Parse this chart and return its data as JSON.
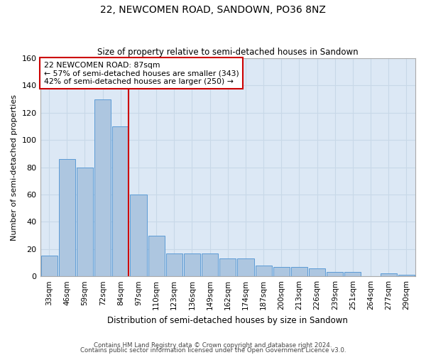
{
  "title": "22, NEWCOMEN ROAD, SANDOWN, PO36 8NZ",
  "subtitle": "Size of property relative to semi-detached houses in Sandown",
  "xlabel": "Distribution of semi-detached houses by size in Sandown",
  "ylabel": "Number of semi-detached properties",
  "categories": [
    "33sqm",
    "46sqm",
    "59sqm",
    "72sqm",
    "84sqm",
    "97sqm",
    "110sqm",
    "123sqm",
    "136sqm",
    "149sqm",
    "162sqm",
    "174sqm",
    "187sqm",
    "200sqm",
    "213sqm",
    "226sqm",
    "239sqm",
    "251sqm",
    "264sqm",
    "277sqm",
    "290sqm"
  ],
  "values": [
    15,
    86,
    80,
    130,
    110,
    60,
    30,
    17,
    17,
    17,
    13,
    13,
    8,
    7,
    7,
    6,
    3,
    3,
    0,
    2,
    1
  ],
  "bar_color": "#adc6e0",
  "bar_edge_color": "#5b9bd5",
  "property_line_index": 4,
  "annotation_text": "22 NEWCOMEN ROAD: 87sqm\n← 57% of semi-detached houses are smaller (343)\n42% of semi-detached houses are larger (250) →",
  "annotation_box_color": "#ffffff",
  "annotation_box_edge": "#cc0000",
  "line_color": "#cc0000",
  "grid_color": "#c8d8e8",
  "background_color": "#dce8f5",
  "ylim": [
    0,
    160
  ],
  "yticks": [
    0,
    20,
    40,
    60,
    80,
    100,
    120,
    140,
    160
  ],
  "footer1": "Contains HM Land Registry data © Crown copyright and database right 2024.",
  "footer2": "Contains public sector information licensed under the Open Government Licence v3.0."
}
